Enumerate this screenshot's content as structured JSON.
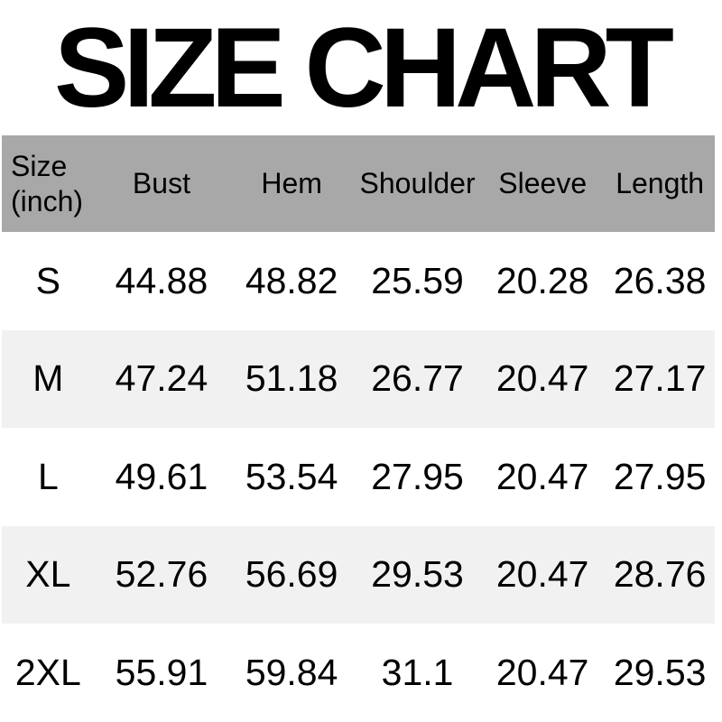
{
  "colors": {
    "page_bg": "#ffffff",
    "header_bg": "#a8a8a8",
    "row_bg": "#ffffff",
    "alt_row_bg": "#f1f1f1",
    "text": "#000000"
  },
  "chart_data": {
    "type": "table",
    "title": "SIZE CHART",
    "unit": "inch",
    "columns": [
      "Size (inch)",
      "Bust",
      "Hem",
      "Shoulder",
      "Sleeve",
      "Length"
    ],
    "rows": [
      [
        "S",
        44.88,
        48.82,
        25.59,
        20.28,
        26.38
      ],
      [
        "M",
        47.24,
        51.18,
        26.77,
        20.47,
        27.17
      ],
      [
        "L",
        49.61,
        53.54,
        27.95,
        20.47,
        27.95
      ],
      [
        "XL",
        52.76,
        56.69,
        29.53,
        20.47,
        28.76
      ],
      [
        "2XL",
        55.91,
        59.84,
        31.1,
        20.47,
        29.53
      ]
    ]
  }
}
